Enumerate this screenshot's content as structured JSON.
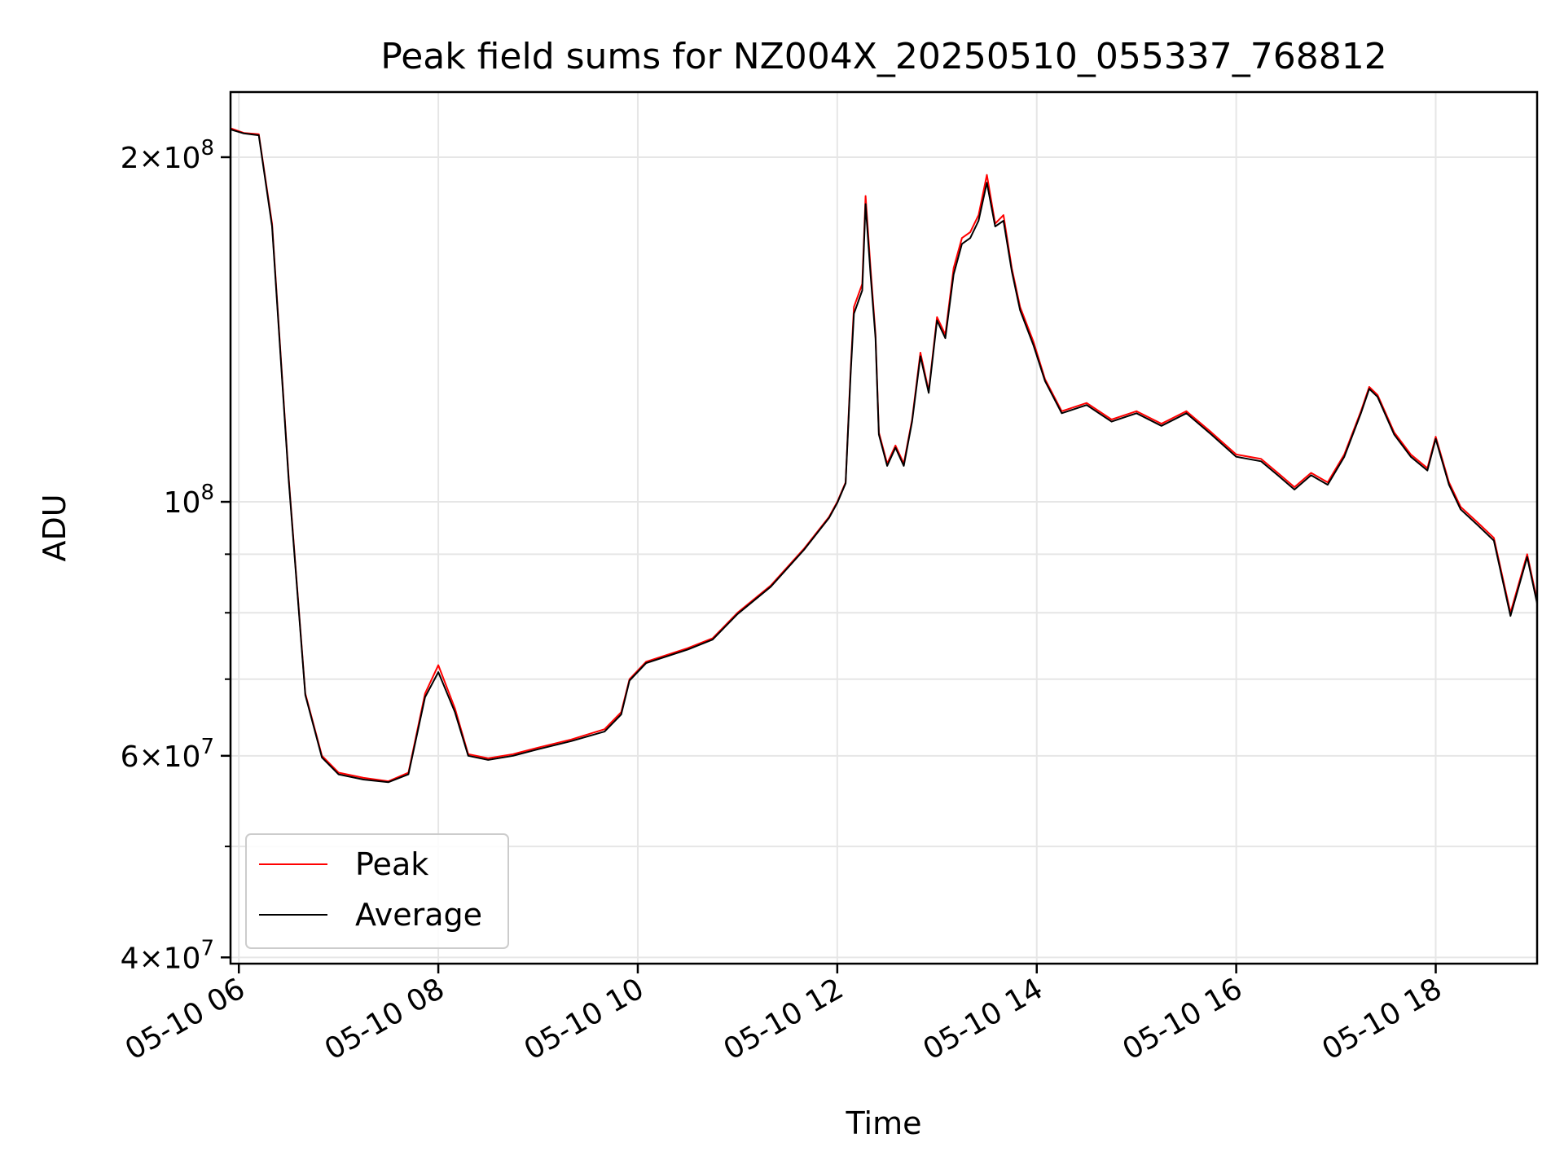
{
  "chart_data": {
    "type": "line",
    "title": "Peak field sums for NZ004X_20250510_055337_768812",
    "xlabel": "Time",
    "ylabel": "ADU",
    "yscale": "log",
    "grid": true,
    "legend_position": "lower-left",
    "xlim": [
      "2025-05-10 05:55",
      "2025-05-10 19:01"
    ],
    "ylim": [
      39500000,
      228000000
    ],
    "xticks": [
      {
        "value": "2025-05-10 06:00",
        "label": "05-10 06"
      },
      {
        "value": "2025-05-10 08:00",
        "label": "05-10 08"
      },
      {
        "value": "2025-05-10 10:00",
        "label": "05-10 10"
      },
      {
        "value": "2025-05-10 12:00",
        "label": "05-10 12"
      },
      {
        "value": "2025-05-10 14:00",
        "label": "05-10 14"
      },
      {
        "value": "2025-05-10 16:00",
        "label": "05-10 16"
      },
      {
        "value": "2025-05-10 18:00",
        "label": "05-10 18"
      }
    ],
    "yticks_major": [
      {
        "value": 40000000,
        "base": "4",
        "exp": "7"
      },
      {
        "value": 60000000,
        "base": "6",
        "exp": "7"
      },
      {
        "value": 100000000,
        "base": "",
        "exp": "8"
      },
      {
        "value": 200000000,
        "base": "2",
        "exp": "8"
      }
    ],
    "yticks_minor": [
      50000000,
      70000000,
      80000000,
      90000000
    ],
    "series": [
      {
        "name": "Peak",
        "color": "#ff0000",
        "points": [
          [
            "2025-05-10 05:55",
            212000000
          ],
          [
            "2025-05-10 06:03",
            210000000
          ],
          [
            "2025-05-10 06:12",
            209500000
          ],
          [
            "2025-05-10 06:20",
            175000000
          ],
          [
            "2025-05-10 06:30",
            105000000
          ],
          [
            "2025-05-10 06:40",
            68000000
          ],
          [
            "2025-05-10 06:50",
            60000000
          ],
          [
            "2025-05-10 07:00",
            58000000
          ],
          [
            "2025-05-10 07:15",
            57400000
          ],
          [
            "2025-05-10 07:30",
            57000000
          ],
          [
            "2025-05-10 07:42",
            58000000
          ],
          [
            "2025-05-10 07:52",
            68000000
          ],
          [
            "2025-05-10 08:00",
            72000000
          ],
          [
            "2025-05-10 08:10",
            66000000
          ],
          [
            "2025-05-10 08:18",
            60200000
          ],
          [
            "2025-05-10 08:30",
            59700000
          ],
          [
            "2025-05-10 08:45",
            60200000
          ],
          [
            "2025-05-10 09:00",
            61000000
          ],
          [
            "2025-05-10 09:20",
            62000000
          ],
          [
            "2025-05-10 09:40",
            63300000
          ],
          [
            "2025-05-10 09:50",
            65500000
          ],
          [
            "2025-05-10 09:55",
            70000000
          ],
          [
            "2025-05-10 10:05",
            72500000
          ],
          [
            "2025-05-10 10:30",
            74500000
          ],
          [
            "2025-05-10 10:45",
            76000000
          ],
          [
            "2025-05-10 11:00",
            80000000
          ],
          [
            "2025-05-10 11:20",
            84500000
          ],
          [
            "2025-05-10 11:40",
            91000000
          ],
          [
            "2025-05-10 11:55",
            97000000
          ],
          [
            "2025-05-10 12:00",
            100000000
          ],
          [
            "2025-05-10 12:05",
            104000000
          ],
          [
            "2025-05-10 12:08",
            130000000
          ],
          [
            "2025-05-10 12:10",
            148000000
          ],
          [
            "2025-05-10 12:15",
            155000000
          ],
          [
            "2025-05-10 12:17",
            185000000
          ],
          [
            "2025-05-10 12:20",
            160000000
          ],
          [
            "2025-05-10 12:23",
            140000000
          ],
          [
            "2025-05-10 12:25",
            115000000
          ],
          [
            "2025-05-10 12:30",
            108000000
          ],
          [
            "2025-05-10 12:35",
            112000000
          ],
          [
            "2025-05-10 12:40",
            108000000
          ],
          [
            "2025-05-10 12:45",
            118000000
          ],
          [
            "2025-05-10 12:50",
            135000000
          ],
          [
            "2025-05-10 12:55",
            125000000
          ],
          [
            "2025-05-10 13:00",
            145000000
          ],
          [
            "2025-05-10 13:05",
            140000000
          ],
          [
            "2025-05-10 13:10",
            160000000
          ],
          [
            "2025-05-10 13:15",
            170000000
          ],
          [
            "2025-05-10 13:20",
            172000000
          ],
          [
            "2025-05-10 13:25",
            178000000
          ],
          [
            "2025-05-10 13:30",
            193000000
          ],
          [
            "2025-05-10 13:35",
            175000000
          ],
          [
            "2025-05-10 13:40",
            178000000
          ],
          [
            "2025-05-10 13:45",
            160000000
          ],
          [
            "2025-05-10 13:50",
            148000000
          ],
          [
            "2025-05-10 13:58",
            138000000
          ],
          [
            "2025-05-10 14:05",
            128000000
          ],
          [
            "2025-05-10 14:15",
            120000000
          ],
          [
            "2025-05-10 14:30",
            122000000
          ],
          [
            "2025-05-10 14:45",
            118000000
          ],
          [
            "2025-05-10 15:00",
            120000000
          ],
          [
            "2025-05-10 15:15",
            117000000
          ],
          [
            "2025-05-10 15:30",
            120000000
          ],
          [
            "2025-05-10 15:45",
            115000000
          ],
          [
            "2025-05-10 16:00",
            110000000
          ],
          [
            "2025-05-10 16:15",
            109000000
          ],
          [
            "2025-05-10 16:25",
            106000000
          ],
          [
            "2025-05-10 16:35",
            103000000
          ],
          [
            "2025-05-10 16:45",
            106000000
          ],
          [
            "2025-05-10 16:55",
            104000000
          ],
          [
            "2025-05-10 17:05",
            110000000
          ],
          [
            "2025-05-10 17:15",
            120000000
          ],
          [
            "2025-05-10 17:20",
            126000000
          ],
          [
            "2025-05-10 17:25",
            124000000
          ],
          [
            "2025-05-10 17:35",
            115000000
          ],
          [
            "2025-05-10 17:45",
            110000000
          ],
          [
            "2025-05-10 17:55",
            107000000
          ],
          [
            "2025-05-10 18:00",
            114000000
          ],
          [
            "2025-05-10 18:08",
            104000000
          ],
          [
            "2025-05-10 18:15",
            99000000
          ],
          [
            "2025-05-10 18:25",
            96000000
          ],
          [
            "2025-05-10 18:35",
            93000000
          ],
          [
            "2025-05-10 18:45",
            80000000
          ],
          [
            "2025-05-10 18:55",
            90000000
          ],
          [
            "2025-05-10 19:01",
            82000000
          ]
        ]
      },
      {
        "name": "Average",
        "color": "#000000",
        "points": [
          [
            "2025-05-10 05:55",
            211500000
          ],
          [
            "2025-05-10 06:03",
            209800000
          ],
          [
            "2025-05-10 06:12",
            209000000
          ],
          [
            "2025-05-10 06:20",
            174000000
          ],
          [
            "2025-05-10 06:30",
            104500000
          ],
          [
            "2025-05-10 06:40",
            67800000
          ],
          [
            "2025-05-10 06:50",
            59800000
          ],
          [
            "2025-05-10 07:00",
            57800000
          ],
          [
            "2025-05-10 07:15",
            57200000
          ],
          [
            "2025-05-10 07:30",
            56900000
          ],
          [
            "2025-05-10 07:42",
            57800000
          ],
          [
            "2025-05-10 07:52",
            67500000
          ],
          [
            "2025-05-10 08:00",
            71000000
          ],
          [
            "2025-05-10 08:10",
            65500000
          ],
          [
            "2025-05-10 08:18",
            60000000
          ],
          [
            "2025-05-10 08:30",
            59500000
          ],
          [
            "2025-05-10 08:45",
            60000000
          ],
          [
            "2025-05-10 09:00",
            60800000
          ],
          [
            "2025-05-10 09:20",
            61800000
          ],
          [
            "2025-05-10 09:40",
            63000000
          ],
          [
            "2025-05-10 09:50",
            65200000
          ],
          [
            "2025-05-10 09:55",
            69800000
          ],
          [
            "2025-05-10 10:05",
            72300000
          ],
          [
            "2025-05-10 10:30",
            74300000
          ],
          [
            "2025-05-10 10:45",
            75800000
          ],
          [
            "2025-05-10 11:00",
            79800000
          ],
          [
            "2025-05-10 11:20",
            84300000
          ],
          [
            "2025-05-10 11:40",
            90800000
          ],
          [
            "2025-05-10 11:55",
            96800000
          ],
          [
            "2025-05-10 12:00",
            99800000
          ],
          [
            "2025-05-10 12:05",
            103800000
          ],
          [
            "2025-05-10 12:08",
            129000000
          ],
          [
            "2025-05-10 12:10",
            146000000
          ],
          [
            "2025-05-10 12:15",
            153000000
          ],
          [
            "2025-05-10 12:17",
            182000000
          ],
          [
            "2025-05-10 12:20",
            158000000
          ],
          [
            "2025-05-10 12:23",
            139000000
          ],
          [
            "2025-05-10 12:25",
            114500000
          ],
          [
            "2025-05-10 12:30",
            107500000
          ],
          [
            "2025-05-10 12:35",
            111500000
          ],
          [
            "2025-05-10 12:40",
            107500000
          ],
          [
            "2025-05-10 12:45",
            117500000
          ],
          [
            "2025-05-10 12:50",
            134000000
          ],
          [
            "2025-05-10 12:55",
            124500000
          ],
          [
            "2025-05-10 13:00",
            144000000
          ],
          [
            "2025-05-10 13:05",
            139000000
          ],
          [
            "2025-05-10 13:10",
            158000000
          ],
          [
            "2025-05-10 13:15",
            168000000
          ],
          [
            "2025-05-10 13:20",
            170000000
          ],
          [
            "2025-05-10 13:25",
            176000000
          ],
          [
            "2025-05-10 13:30",
            190000000
          ],
          [
            "2025-05-10 13:35",
            174000000
          ],
          [
            "2025-05-10 13:40",
            176000000
          ],
          [
            "2025-05-10 13:45",
            159000000
          ],
          [
            "2025-05-10 13:50",
            147000000
          ],
          [
            "2025-05-10 13:58",
            137000000
          ],
          [
            "2025-05-10 14:05",
            127500000
          ],
          [
            "2025-05-10 14:15",
            119500000
          ],
          [
            "2025-05-10 14:30",
            121500000
          ],
          [
            "2025-05-10 14:45",
            117500000
          ],
          [
            "2025-05-10 15:00",
            119500000
          ],
          [
            "2025-05-10 15:15",
            116500000
          ],
          [
            "2025-05-10 15:30",
            119500000
          ],
          [
            "2025-05-10 15:45",
            114500000
          ],
          [
            "2025-05-10 16:00",
            109500000
          ],
          [
            "2025-05-10 16:15",
            108500000
          ],
          [
            "2025-05-10 16:25",
            105500000
          ],
          [
            "2025-05-10 16:35",
            102500000
          ],
          [
            "2025-05-10 16:45",
            105500000
          ],
          [
            "2025-05-10 16:55",
            103500000
          ],
          [
            "2025-05-10 17:05",
            109500000
          ],
          [
            "2025-05-10 17:15",
            119500000
          ],
          [
            "2025-05-10 17:20",
            125500000
          ],
          [
            "2025-05-10 17:25",
            123500000
          ],
          [
            "2025-05-10 17:35",
            114500000
          ],
          [
            "2025-05-10 17:45",
            109500000
          ],
          [
            "2025-05-10 17:55",
            106500000
          ],
          [
            "2025-05-10 18:00",
            113500000
          ],
          [
            "2025-05-10 18:08",
            103500000
          ],
          [
            "2025-05-10 18:15",
            98500000
          ],
          [
            "2025-05-10 18:25",
            95500000
          ],
          [
            "2025-05-10 18:35",
            92500000
          ],
          [
            "2025-05-10 18:45",
            79500000
          ],
          [
            "2025-05-10 18:55",
            89500000
          ],
          [
            "2025-05-10 19:01",
            81500000
          ]
        ]
      }
    ]
  },
  "legend": {
    "peak_label": "Peak",
    "average_label": "Average"
  }
}
